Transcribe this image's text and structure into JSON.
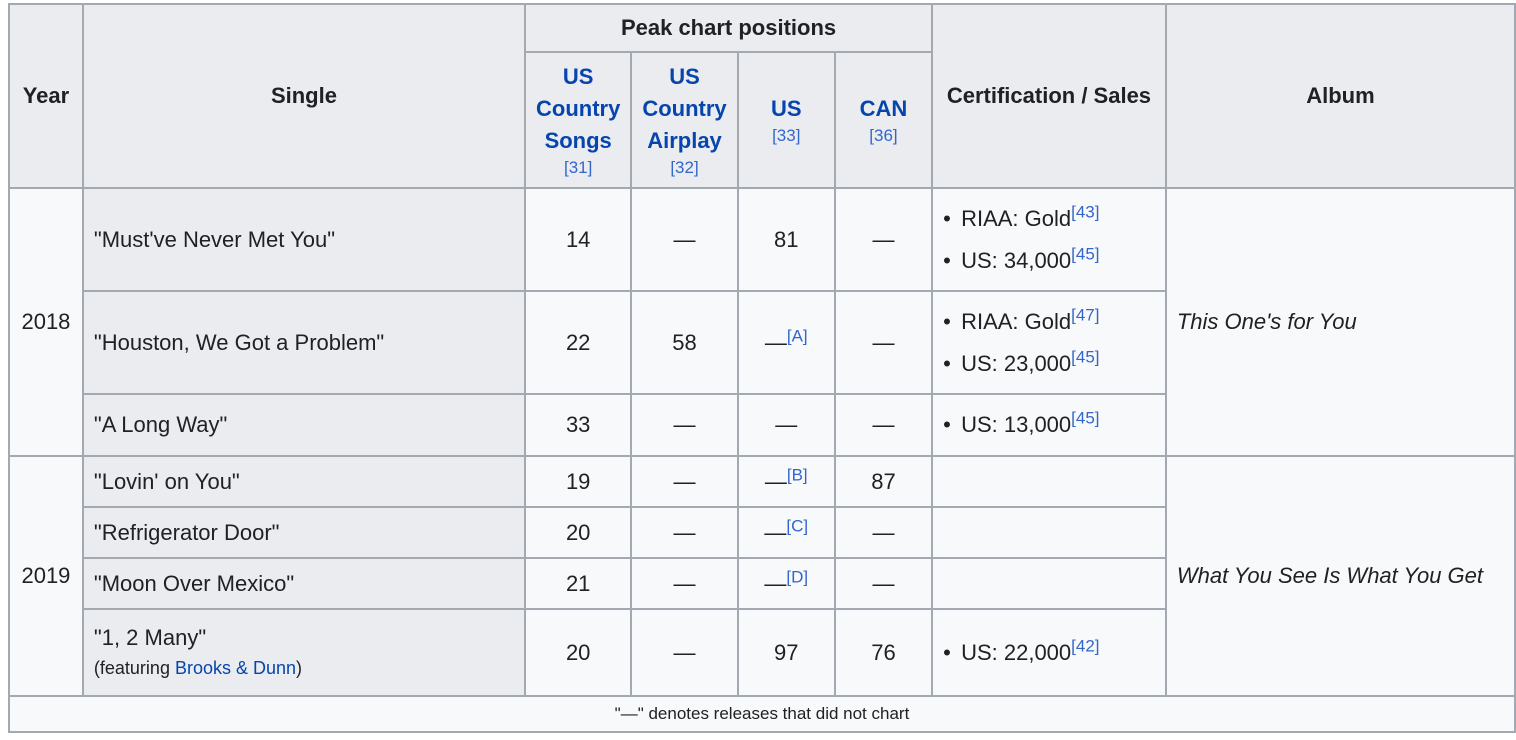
{
  "header": {
    "year": "Year",
    "single": "Single",
    "peak": "Peak chart positions",
    "cert": "Certification / Sales",
    "album": "Album",
    "charts": [
      {
        "name": "US Country Songs",
        "lines": [
          "US",
          "Country",
          "Songs"
        ],
        "ref": "[31]"
      },
      {
        "name": "US Country Airplay",
        "lines": [
          "US",
          "Country",
          "Airplay"
        ],
        "ref": "[32]"
      },
      {
        "name": "US",
        "lines": [
          "US"
        ],
        "ref": "[33]"
      },
      {
        "name": "CAN",
        "lines": [
          "CAN"
        ],
        "ref": "[36]"
      }
    ]
  },
  "rows": [
    {
      "single": "\"Must've Never Met You\"",
      "songs": "14",
      "airplay": "—",
      "us": "81",
      "us_ref": "",
      "can": "—",
      "cert": [
        {
          "text": "RIAA: Gold",
          "ref": "[43]"
        },
        {
          "text": "US: 34,000",
          "ref": "[45]"
        }
      ]
    },
    {
      "single": "\"Houston, We Got a Problem\"",
      "songs": "22",
      "airplay": "58",
      "us": "—",
      "us_ref": "[A]",
      "can": "—",
      "cert": [
        {
          "text": "RIAA: Gold",
          "ref": "[47]"
        },
        {
          "text": "US: 23,000",
          "ref": "[45]"
        }
      ]
    },
    {
      "single": "\"A Long Way\"",
      "songs": "33",
      "airplay": "—",
      "us": "—",
      "us_ref": "",
      "can": "—",
      "cert": [
        {
          "text": "US: 13,000",
          "ref": "[45]"
        }
      ]
    },
    {
      "single": "\"Lovin' on You\"",
      "songs": "19",
      "airplay": "—",
      "us": "—",
      "us_ref": "[B]",
      "can": "87",
      "cert": []
    },
    {
      "single": "\"Refrigerator Door\"",
      "songs": "20",
      "airplay": "—",
      "us": "—",
      "us_ref": "[C]",
      "can": "—",
      "cert": []
    },
    {
      "single": "\"Moon Over Mexico\"",
      "songs": "21",
      "airplay": "—",
      "us": "—",
      "us_ref": "[D]",
      "can": "—",
      "cert": []
    },
    {
      "single": "\"1, 2 Many\"",
      "feat_prefix": "(featuring ",
      "feat_link": "Brooks & Dunn",
      "feat_suffix": ")",
      "songs": "20",
      "airplay": "—",
      "us": "97",
      "us_ref": "",
      "can": "76",
      "cert": [
        {
          "text": "US: 22,000",
          "ref": "[42]"
        }
      ]
    }
  ],
  "years": [
    "2018",
    "2019"
  ],
  "albums": [
    "This One's for You",
    "What You See Is What You Get"
  ],
  "footnote": "\"—\" denotes releases that did not chart"
}
